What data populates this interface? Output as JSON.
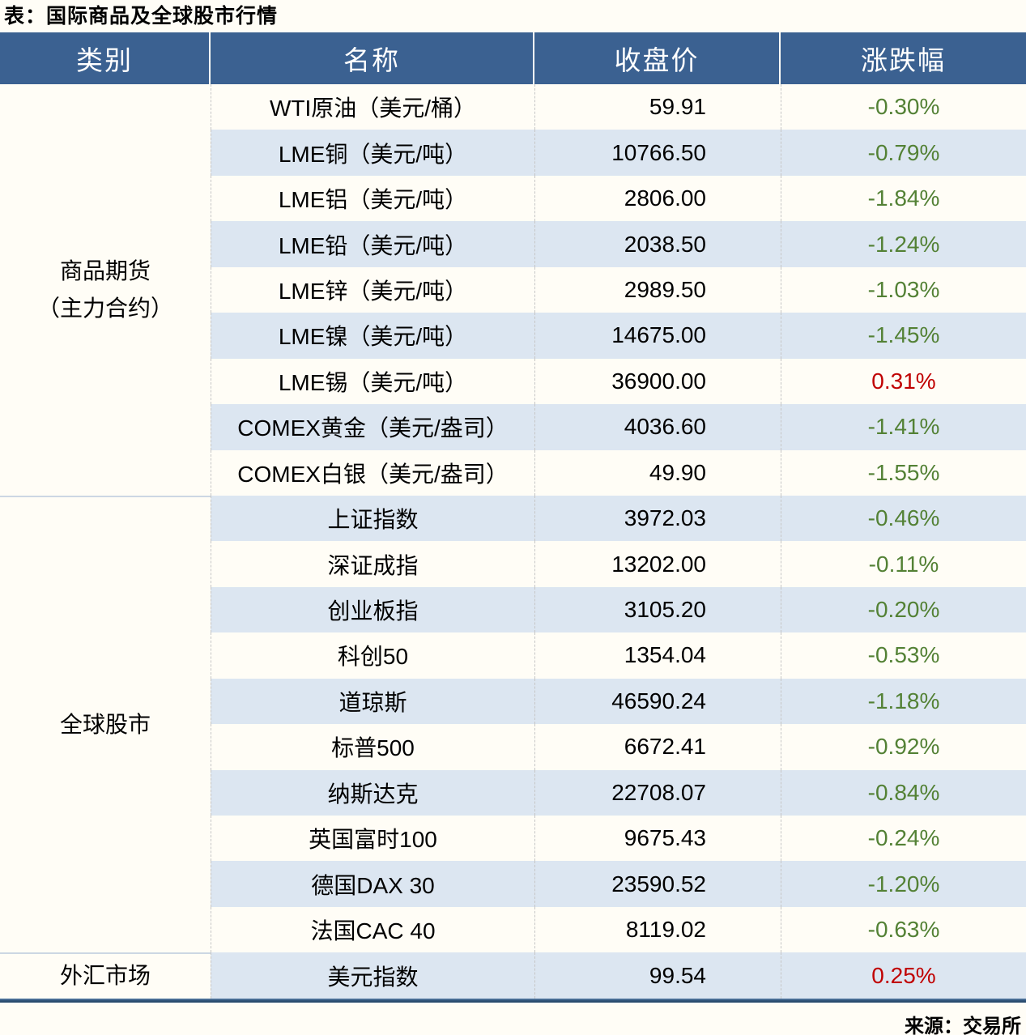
{
  "colors": {
    "header_bg": "#3b6191",
    "header_text": "#ffffff",
    "stripe_bg": "#dce6f1",
    "row_bg": "#fffdf6",
    "gain_red": "#c00000",
    "loss_green": "#538135",
    "bottom_border": "#2c5074"
  },
  "chart_data": {
    "type": "table",
    "title": "表：国际商品及全球股市行情",
    "source": "来源：交易所",
    "columns": [
      "类别",
      "名称",
      "收盘价",
      "涨跌幅"
    ],
    "groups": [
      {
        "category": "商品期货（主力合约）",
        "category_lines": [
          "商品期货",
          "（主力合约）"
        ],
        "rows": [
          {
            "name": "WTI原油（美元/桶）",
            "close": "59.91",
            "change": "-0.30%",
            "direction": "down"
          },
          {
            "name": "LME铜（美元/吨）",
            "close": "10766.50",
            "change": "-0.79%",
            "direction": "down"
          },
          {
            "name": "LME铝（美元/吨）",
            "close": "2806.00",
            "change": "-1.84%",
            "direction": "down"
          },
          {
            "name": "LME铅（美元/吨）",
            "close": "2038.50",
            "change": "-1.24%",
            "direction": "down"
          },
          {
            "name": "LME锌（美元/吨）",
            "close": "2989.50",
            "change": "-1.03%",
            "direction": "down"
          },
          {
            "name": "LME镍（美元/吨）",
            "close": "14675.00",
            "change": "-1.45%",
            "direction": "down"
          },
          {
            "name": "LME锡（美元/吨）",
            "close": "36900.00",
            "change": "0.31%",
            "direction": "up"
          },
          {
            "name": "COMEX黄金（美元/盎司）",
            "close": "4036.60",
            "change": "-1.41%",
            "direction": "down"
          },
          {
            "name": "COMEX白银（美元/盎司）",
            "close": "49.90",
            "change": "-1.55%",
            "direction": "down"
          }
        ]
      },
      {
        "category": "全球股市",
        "category_lines": [
          "全球股市"
        ],
        "rows": [
          {
            "name": "上证指数",
            "close": "3972.03",
            "change": "-0.46%",
            "direction": "down"
          },
          {
            "name": "深证成指",
            "close": "13202.00",
            "change": "-0.11%",
            "direction": "down"
          },
          {
            "name": "创业板指",
            "close": "3105.20",
            "change": "-0.20%",
            "direction": "down"
          },
          {
            "name": "科创50",
            "close": "1354.04",
            "change": "-0.53%",
            "direction": "down"
          },
          {
            "name": "道琼斯",
            "close": "46590.24",
            "change": "-1.18%",
            "direction": "down"
          },
          {
            "name": "标普500",
            "close": "6672.41",
            "change": "-0.92%",
            "direction": "down"
          },
          {
            "name": "纳斯达克",
            "close": "22708.07",
            "change": "-0.84%",
            "direction": "down"
          },
          {
            "name": "英国富时100",
            "close": "9675.43",
            "change": "-0.24%",
            "direction": "down"
          },
          {
            "name": "德国DAX 30",
            "close": "23590.52",
            "change": "-1.20%",
            "direction": "down"
          },
          {
            "name": "法国CAC 40",
            "close": "8119.02",
            "change": "-0.63%",
            "direction": "down"
          }
        ]
      },
      {
        "category": "外汇市场",
        "category_lines": [
          "外汇市场"
        ],
        "rows": [
          {
            "name": "美元指数",
            "close": "99.54",
            "change": "0.25%",
            "direction": "up"
          }
        ]
      }
    ]
  }
}
